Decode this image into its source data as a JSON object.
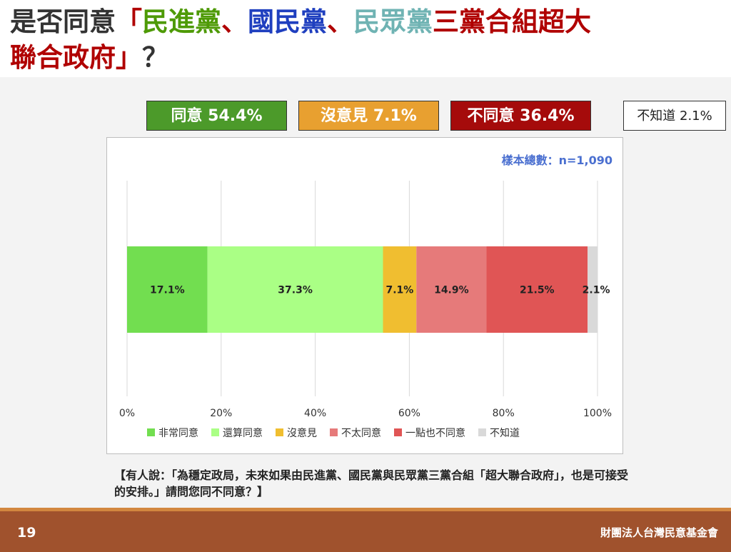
{
  "title": {
    "line1_prefix": "是否同意",
    "bracket_open": "「",
    "party1": "民進黨",
    "sep1": "、",
    "party2": "國民黨",
    "sep2": "、",
    "party3": "民眾黨",
    "tail": "三黨合組超大",
    "line2": "聯合政府",
    "bracket_close": "」",
    "question_mark": "？"
  },
  "colors": {
    "party1": "#4e9a06",
    "party2": "#1f3fbf",
    "party3": "#6fb3b3",
    "emphasis": "#b00000"
  },
  "summary": [
    {
      "label": "同意 54.4%",
      "color": "#4c9a2a"
    },
    {
      "label": "沒意見 7.1%",
      "color": "#e8a030"
    },
    {
      "label": "不同意 36.4%",
      "color": "#a50b0b"
    },
    {
      "label": "不知道 2.1%",
      "color": "#ffffff"
    }
  ],
  "chart_data": {
    "type": "bar",
    "orientation": "horizontal-stacked",
    "sample_note": "樣本總數：n=1,090",
    "xlim": [
      0,
      100
    ],
    "x_ticks": [
      "0%",
      "20%",
      "40%",
      "60%",
      "80%",
      "100%"
    ],
    "grid": true,
    "legend_position": "bottom",
    "series": [
      {
        "name": "非常同意",
        "value": 17.1,
        "label": "17.1%",
        "color": "#72de50"
      },
      {
        "name": "還算同意",
        "value": 37.3,
        "label": "37.3%",
        "color": "#aaff85"
      },
      {
        "name": "沒意見",
        "value": 7.1,
        "label": "7.1%",
        "color": "#f0be30"
      },
      {
        "name": "不太同意",
        "value": 14.9,
        "label": "14.9%",
        "color": "#e67a7a"
      },
      {
        "name": "一點也不同意",
        "value": 21.5,
        "label": "21.5%",
        "color": "#e05555"
      },
      {
        "name": "不知道",
        "value": 2.1,
        "label": "2.1%",
        "color": "#d9d9d9"
      }
    ]
  },
  "caption": "【有人說：「為穩定政局，未來如果由民進黨、國民黨與民眾黨三黨合組「超大聯合政府」，也是可接受的安排。」請問您同不同意？】",
  "footer": {
    "page_number": "19",
    "organization": "財團法人台灣民意基金會"
  }
}
